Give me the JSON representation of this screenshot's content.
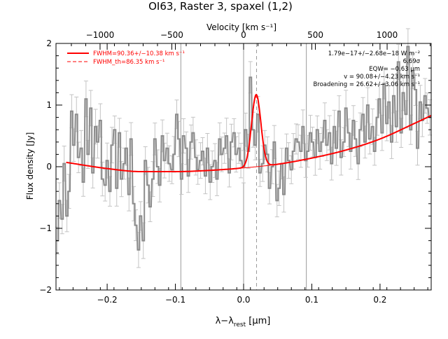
{
  "chart_data": {
    "type": "line",
    "title": "OI63, Raster 3, spaxel (1,2)",
    "xlabel": "λ−λ",
    "xlabel_sub": "rest",
    "xlabel_unit": " [μm]",
    "ylabel": "Flux density [Jy]",
    "top_axis_label": "Velocity [km s⁻¹]",
    "xlim": [
      -0.275,
      0.275
    ],
    "ylim": [
      -2,
      2
    ],
    "x_ticks": [
      "−0.2",
      "−0.1",
      "0.0",
      "0.1",
      "0.2"
    ],
    "x_tick_values": [
      -0.2,
      -0.1,
      0.0,
      0.1,
      0.2
    ],
    "y_ticks": [
      "−2",
      "−1",
      "0",
      "1",
      "2"
    ],
    "y_tick_values": [
      -2,
      -1,
      0,
      1,
      2
    ],
    "top_ticks": [
      "−1000",
      "−500",
      "0",
      "500",
      "1000"
    ],
    "top_tick_values": [
      -1000,
      -500,
      0,
      500,
      1000
    ],
    "velocity_scale_um_per_kms": 0.0002104,
    "vertical_lines": [
      -0.092,
      0.0,
      0.092
    ],
    "dashed_line": 0.019,
    "legend": {
      "position": "top-left",
      "entries": [
        "FWHM=90.36+/−10.38 km s⁻¹",
        "FWHM_th=86.35 km s⁻¹"
      ]
    },
    "annotations": [
      "1.79e−17+/−2.68e−18 W m⁻²",
      "6.69σ",
      "EQW= −0.63 μm",
      "v = 90.08+/−4.23 km s⁻¹",
      "Broadening = 26.62+/−3.06 km s⁻¹"
    ],
    "colors": {
      "data": "#8c8c8c",
      "fit": "#ff0000",
      "axes": "#000000",
      "lines": "#9a9a9a"
    },
    "series": [
      {
        "kind": "step",
        "x": [
          -0.273,
          -0.27,
          -0.266,
          -0.263,
          -0.259,
          -0.256,
          -0.252,
          -0.249,
          -0.245,
          -0.242,
          -0.238,
          -0.235,
          -0.231,
          -0.228,
          -0.224,
          -0.221,
          -0.217,
          -0.214,
          -0.21,
          -0.207,
          -0.203,
          -0.2,
          -0.196,
          -0.193,
          -0.189,
          -0.186,
          -0.182,
          -0.179,
          -0.175,
          -0.172,
          -0.168,
          -0.165,
          -0.161,
          -0.158,
          -0.154,
          -0.151,
          -0.147,
          -0.144,
          -0.14,
          -0.137,
          -0.133,
          -0.13,
          -0.126,
          -0.123,
          -0.119,
          -0.116,
          -0.112,
          -0.109,
          -0.105,
          -0.102,
          -0.098,
          -0.095,
          -0.091,
          -0.088,
          -0.084,
          -0.081,
          -0.077,
          -0.074,
          -0.07,
          -0.067,
          -0.063,
          -0.06,
          -0.056,
          -0.053,
          -0.049,
          -0.046,
          -0.042,
          -0.039,
          -0.035,
          -0.032,
          -0.028,
          -0.025,
          -0.021,
          -0.018,
          -0.014,
          -0.011,
          -0.007,
          -0.004,
          0.0,
          0.003,
          0.007,
          0.01,
          0.014,
          0.017,
          0.021,
          0.024,
          0.028,
          0.031,
          0.035,
          0.038,
          0.042,
          0.045,
          0.049,
          0.052,
          0.056,
          0.059,
          0.063,
          0.066,
          0.07,
          0.073,
          0.077,
          0.08,
          0.084,
          0.087,
          0.091,
          0.094,
          0.098,
          0.101,
          0.105,
          0.108,
          0.112,
          0.115,
          0.119,
          0.122,
          0.126,
          0.129,
          0.133,
          0.136,
          0.14,
          0.143,
          0.147,
          0.15,
          0.154,
          0.157,
          0.161,
          0.164,
          0.168,
          0.171,
          0.175,
          0.178,
          0.182,
          0.185,
          0.189,
          0.192,
          0.196,
          0.199,
          0.203,
          0.206,
          0.21,
          0.213,
          0.217,
          0.22,
          0.224,
          0.227,
          0.231,
          0.234,
          0.238,
          0.241,
          0.245,
          0.248,
          0.252,
          0.255,
          0.259,
          0.262,
          0.266,
          0.269,
          0.273
        ],
        "y": [
          -1.2,
          -0.55,
          -0.85,
          0.05,
          -0.8,
          -0.4,
          0.9,
          0.35,
          0.85,
          0.15,
          0.3,
          -0.25,
          1.1,
          0.2,
          0.95,
          -0.1,
          0.65,
          0.4,
          0.75,
          -0.2,
          -0.3,
          0.1,
          -0.4,
          0.35,
          0.6,
          -0.35,
          0.55,
          -0.2,
          0.05,
          0.3,
          -0.45,
          0.45,
          -0.6,
          -0.95,
          -1.35,
          -0.8,
          -1.2,
          0.1,
          -0.3,
          -0.65,
          -0.2,
          0.45,
          0.0,
          -0.3,
          0.5,
          0.1,
          0.3,
          0.05,
          -0.05,
          0.2,
          0.85,
          0.45,
          -0.2,
          0.5,
          0.3,
          -0.15,
          0.4,
          0.55,
          0.15,
          -0.05,
          0.1,
          0.25,
          -0.15,
          0.3,
          -0.25,
          0.0,
          0.1,
          -0.2,
          0.45,
          0.2,
          0.3,
          0.5,
          -0.1,
          0.4,
          0.55,
          0.2,
          0.3,
          0.1,
          0.0,
          0.6,
          0.25,
          1.45,
          0.6,
          0.35,
          0.85,
          -0.1,
          0.05,
          0.35,
          0.2,
          -0.35,
          0.0,
          0.4,
          -0.55,
          -0.35,
          0.05,
          -0.45,
          0.3,
          0.1,
          -0.05,
          0.25,
          0.45,
          0.4,
          0.25,
          0.65,
          0.1,
          0.25,
          0.55,
          0.4,
          0.15,
          0.6,
          0.25,
          0.4,
          0.75,
          0.35,
          0.55,
          0.05,
          0.65,
          0.3,
          0.9,
          0.15,
          0.4,
          0.95,
          0.55,
          0.25,
          0.75,
          0.45,
          0.05,
          0.6,
          0.85,
          0.4,
          1.0,
          0.45,
          0.65,
          0.25,
          0.8,
          1.1,
          0.55,
          1.35,
          0.7,
          1.05,
          0.4,
          1.15,
          0.65,
          1.7,
          0.55,
          1.2,
          0.85,
          1.95,
          0.6,
          1.55,
          1.25,
          0.3,
          1.05,
          0.75,
          1.15,
          0.95,
          0.8
        ]
      },
      {
        "name": "FWHM=90.36+/−10.38 km s⁻¹",
        "kind": "fit",
        "continuum_x": [
          -0.26,
          -0.2,
          -0.15,
          -0.1,
          -0.05,
          0.0,
          0.05,
          0.1,
          0.15,
          0.2,
          0.25,
          0.275
        ],
        "continuum_y": [
          0.07,
          -0.03,
          -0.08,
          -0.08,
          -0.06,
          -0.02,
          0.04,
          0.14,
          0.27,
          0.45,
          0.7,
          0.83
        ],
        "line_center": 0.0185,
        "line_peak": 1.17,
        "line_sigma": 0.0068
      }
    ]
  }
}
